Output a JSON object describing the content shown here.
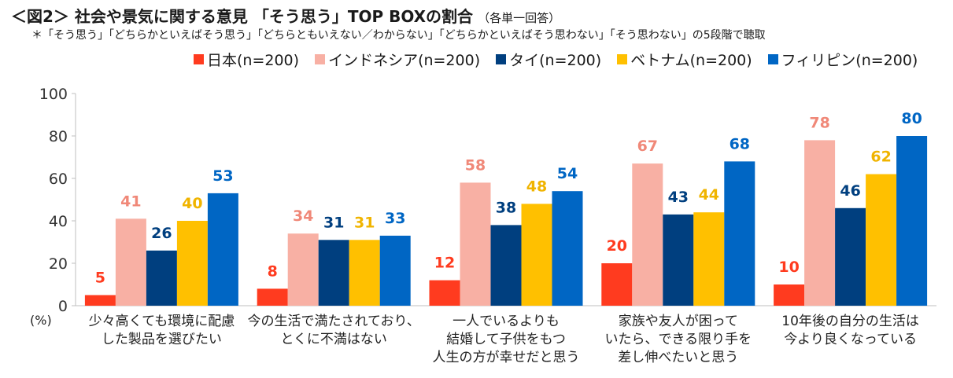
{
  "header": {
    "title": "＜図2＞ 社会や景気に関する意見 「そう思う」TOP BOXの割合",
    "title_note": "（各単一回答）",
    "subtitle": "＊「そう思う」「どちらかといえばそう思う」「どちらともいえない／わからない」「どちらかといえばそう思わない」「そう思わない」の5段階で聴取"
  },
  "chart_data": {
    "type": "bar",
    "categories": [
      [
        "少々高くても環境に配慮",
        "した製品を選びたい"
      ],
      [
        "今の生活で満たされており、",
        "とくに不満はない"
      ],
      [
        "一人でいるよりも",
        "結婚して子供をもつ",
        "人生の方が幸せだと思う"
      ],
      [
        "家族や友人が困って",
        "いたら、できる限り手を",
        "差し伸べたいと思う"
      ],
      [
        "10年後の自分の生活は",
        "今より良くなっている"
      ]
    ],
    "series": [
      {
        "name": "日本(n=200)",
        "color": "#ff3b1f",
        "label_color": "#ff3b1f",
        "values": [
          5,
          8,
          12,
          20,
          10
        ]
      },
      {
        "name": "インドネシア(n=200)",
        "color": "#f8b0a4",
        "label_color": "#f08878",
        "values": [
          41,
          34,
          58,
          67,
          78
        ]
      },
      {
        "name": "タイ(n=200)",
        "color": "#003f7f",
        "label_color": "#003f7f",
        "values": [
          26,
          31,
          38,
          43,
          46
        ]
      },
      {
        "name": "ベトナム(n=200)",
        "color": "#ffc000",
        "label_color": "#f0b400",
        "values": [
          40,
          31,
          48,
          44,
          62
        ]
      },
      {
        "name": "フィリピン(n=200)",
        "color": "#0066c4",
        "label_color": "#0066c4",
        "values": [
          53,
          33,
          54,
          68,
          80
        ]
      }
    ],
    "ylim": [
      0,
      100
    ],
    "yticks": [
      0,
      20,
      40,
      60,
      80,
      100
    ],
    "y_unit": "(%)",
    "legend_position": "top",
    "grid": false
  }
}
